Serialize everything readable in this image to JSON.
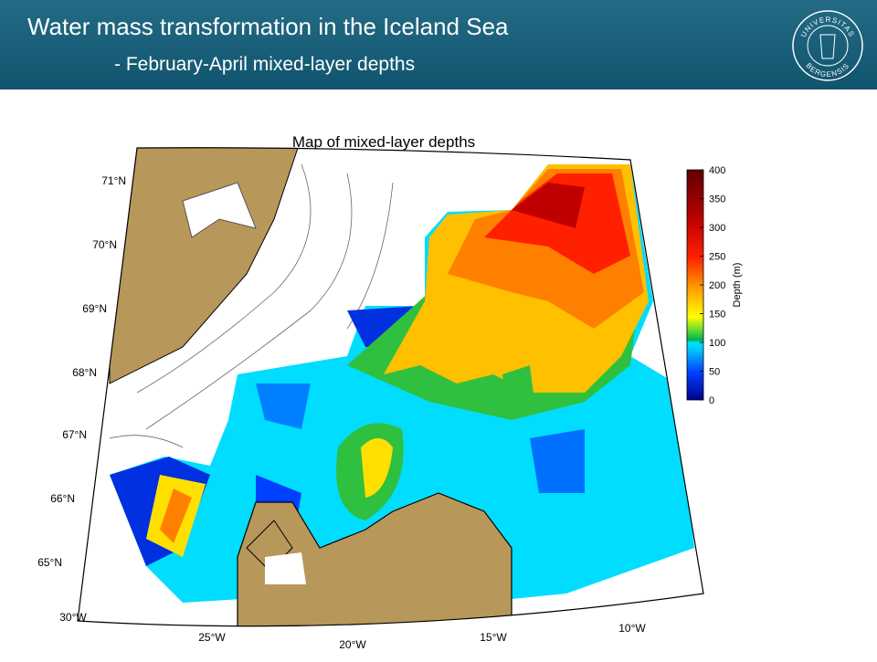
{
  "header": {
    "title": "Water mass transformation in the Iceland Sea",
    "subtitle": "- February-April mixed-layer depths",
    "logo_top": "UNIVERSITAS",
    "logo_bottom": "BERGENSIS"
  },
  "map": {
    "title": "Map of mixed-layer depths",
    "lat_labels": [
      "71°N",
      "70°N",
      "69°N",
      "68°N",
      "67°N",
      "66°N",
      "65°N"
    ],
    "lon_labels": [
      "30°W",
      "25°W",
      "20°W",
      "15°W",
      "10°W"
    ]
  },
  "colorbar": {
    "label": "Depth (m)",
    "range": [
      0,
      400
    ],
    "ticks": [
      0,
      50,
      100,
      150,
      200,
      250,
      300,
      350,
      400
    ]
  }
}
